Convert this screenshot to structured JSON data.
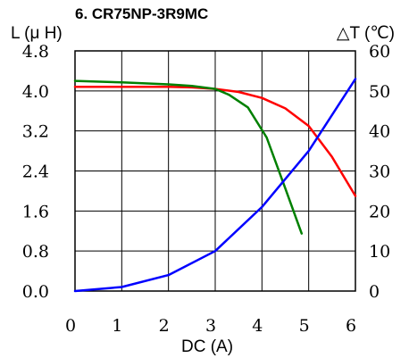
{
  "chart_data": {
    "type": "line",
    "title": "6. CR75NP-3R9MC",
    "xlabel": "DC (A)",
    "ylabel_left": "L (μ H)",
    "ylabel_right": "△T (℃)",
    "x_ticks": [
      "0",
      "1",
      "2",
      "3",
      "4",
      "5",
      "6"
    ],
    "y_left_ticks": [
      "0.0",
      "0.8",
      "1.6",
      "2.4",
      "3.2",
      "4.0",
      "4.8"
    ],
    "y_right_ticks": [
      "0",
      "10",
      "20",
      "30",
      "40",
      "50",
      "60"
    ],
    "xlim": [
      0,
      6
    ],
    "ylim_left": [
      0,
      4.8
    ],
    "ylim_right": [
      0,
      60
    ],
    "grid": true,
    "series": [
      {
        "axis": "left",
        "color": "#ff0000",
        "x": [
          0,
          1,
          2,
          2.5,
          3,
          3.5,
          4,
          4.5,
          5,
          5.5,
          6
        ],
        "y": [
          4.08,
          4.08,
          4.08,
          4.07,
          4.04,
          3.98,
          3.86,
          3.65,
          3.3,
          2.68,
          1.9
        ]
      },
      {
        "axis": "left",
        "color": "#008000",
        "x": [
          0,
          1,
          2,
          2.5,
          3,
          3.3,
          3.7,
          4.1,
          4.5,
          4.85
        ],
        "y": [
          4.2,
          4.17,
          4.13,
          4.1,
          4.04,
          3.92,
          3.67,
          3.07,
          2.05,
          1.15
        ]
      },
      {
        "axis": "right",
        "color": "#0000ff",
        "x": [
          0,
          1,
          2,
          3,
          4,
          5,
          6
        ],
        "y": [
          0,
          1,
          4,
          10,
          21,
          35,
          53
        ]
      }
    ]
  }
}
